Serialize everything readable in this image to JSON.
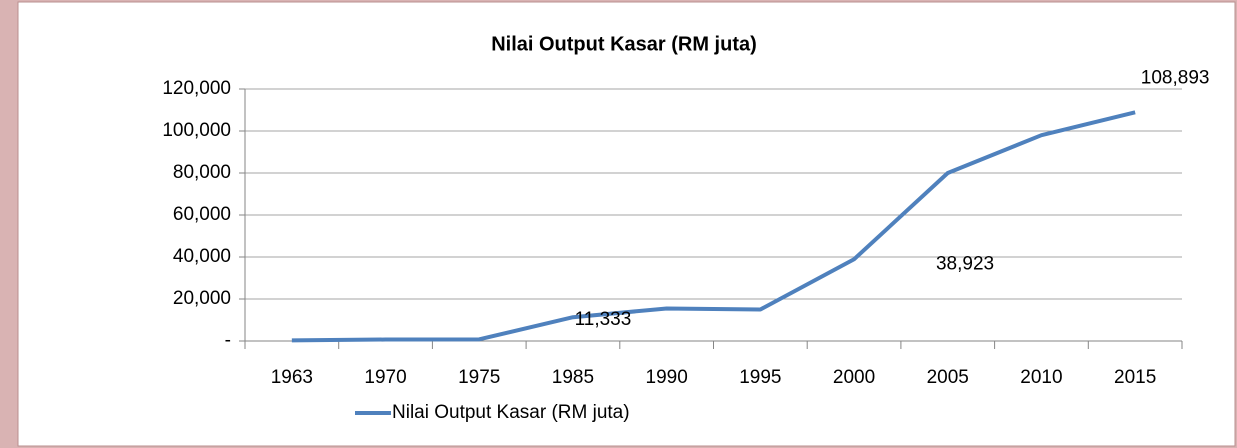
{
  "chart_data": {
    "type": "line",
    "title": "Nilai Output Kasar (RM juta)",
    "categories": [
      "1963",
      "1970",
      "1975",
      "1985",
      "1990",
      "1995",
      "2000",
      "2005",
      "2010",
      "2015"
    ],
    "series": [
      {
        "name": "Nilai Output Kasar (RM juta)",
        "color": "#4f81bd",
        "values": [
          300,
          700,
          800,
          11333,
          15500,
          15000,
          38923,
          80000,
          98000,
          108893
        ],
        "value_labels": [
          null,
          null,
          null,
          "11,333",
          null,
          null,
          "38,923",
          null,
          null,
          "108,893"
        ]
      }
    ],
    "ylim": [
      0,
      120000
    ],
    "yticks": [
      {
        "value": 0,
        "label": "-"
      },
      {
        "value": 20000,
        "label": "20,000"
      },
      {
        "value": 40000,
        "label": "40,000"
      },
      {
        "value": 60000,
        "label": "60,000"
      },
      {
        "value": 80000,
        "label": "80,000"
      },
      {
        "value": 100000,
        "label": "100,000"
      },
      {
        "value": 120000,
        "label": "120,000"
      }
    ],
    "grid": true,
    "legend": "bottom-left"
  }
}
